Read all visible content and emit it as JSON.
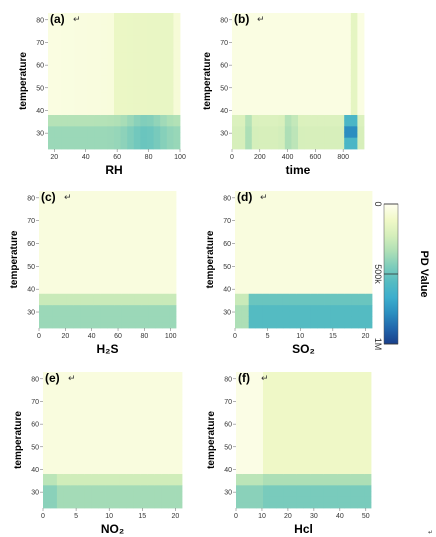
{
  "colorbar": {
    "title": "PD Value",
    "ticks": [
      "0",
      "500k",
      "1M"
    ],
    "tick_values": [
      0,
      500000,
      1000000
    ]
  },
  "colors": {
    "ramp": [
      "#fffff0",
      "#f1f9c8",
      "#d6efbb",
      "#b0e0b6",
      "#7fcdbb",
      "#55bcc2",
      "#3daecd",
      "#2c8fc0",
      "#2166ac",
      "#1a3f8a"
    ]
  },
  "chart_data": [
    {
      "type": "heatmap",
      "panel_label": "(a)",
      "mark": "↵",
      "xlabel": "RH",
      "ylabel": "temperature",
      "xlim": [
        16,
        100
      ],
      "ylim": [
        23,
        83
      ],
      "xticks": [
        20,
        40,
        60,
        80,
        100
      ],
      "yticks": [
        30,
        40,
        50,
        60,
        70,
        80
      ],
      "z_estimate": "high PD (~300k-500k) for temperature below ~38 across all RH, peaking near RH 70-85; moderate (~100k) band for RH 58-95 at higher temperatures; near zero elsewhere"
    },
    {
      "type": "heatmap",
      "panel_label": "(b)",
      "mark": "↵",
      "xlabel": "time",
      "ylabel": "temperature",
      "xlim": [
        0,
        950
      ],
      "ylim": [
        23,
        83
      ],
      "xticks": [
        0,
        200,
        400,
        600,
        800
      ],
      "yticks": [
        30,
        40,
        50,
        60,
        70,
        80
      ],
      "z_estimate": "elevated PD below temperature ~38, strongest near time 420 and 840-900 (~800k); moderate column near time 850-900 at all temperatures"
    },
    {
      "type": "heatmap",
      "panel_label": "(c)",
      "mark": "↵",
      "xlabel": "H₂S",
      "ylabel": "temperature",
      "xlim": [
        0,
        104
      ],
      "ylim": [
        23,
        83
      ],
      "xticks": [
        0,
        20,
        40,
        60,
        80,
        100
      ],
      "yticks": [
        30,
        40,
        50,
        60,
        70,
        80
      ],
      "z_estimate": "PD ~250k-400k below temperature ~38 for all H₂S, near zero above"
    },
    {
      "type": "heatmap",
      "panel_label": "(d)",
      "mark": "↵",
      "xlabel": "SO₂",
      "ylabel": "temperature",
      "xlim": [
        0,
        21
      ],
      "ylim": [
        23,
        83
      ],
      "xticks": [
        0,
        5,
        10,
        15,
        20
      ],
      "yticks": [
        30,
        40,
        50,
        60,
        70,
        80
      ],
      "z_estimate": "PD ~500k-700k below temperature ~38 for SO₂ above ~2, lower (~300k) for SO₂ below 2, near zero above"
    },
    {
      "type": "heatmap",
      "panel_label": "(e)",
      "mark": "↵",
      "xlabel": "NO₂",
      "ylabel": "temperature",
      "xlim": [
        0,
        21
      ],
      "ylim": [
        23,
        83
      ],
      "xticks": [
        0,
        5,
        10,
        15,
        20
      ],
      "yticks": [
        30,
        40,
        50,
        60,
        70,
        80
      ],
      "z_estimate": "PD ~200k-350k below temperature ~38 for all NO₂, near zero above"
    },
    {
      "type": "heatmap",
      "panel_label": "(f)",
      "mark": "↵",
      "xlabel": "Hcl",
      "ylabel": "temperature",
      "xlim": [
        0,
        52
      ],
      "ylim": [
        23,
        83
      ],
      "xticks": [
        0,
        10,
        20,
        30,
        40,
        50
      ],
      "yticks": [
        30,
        40,
        50,
        60,
        70,
        80
      ],
      "z_estimate": "PD ~300k-450k below temperature ~38, ~100k band above for Hcl greater than ~11, near zero for Hcl below 11 above temperature 40"
    }
  ]
}
